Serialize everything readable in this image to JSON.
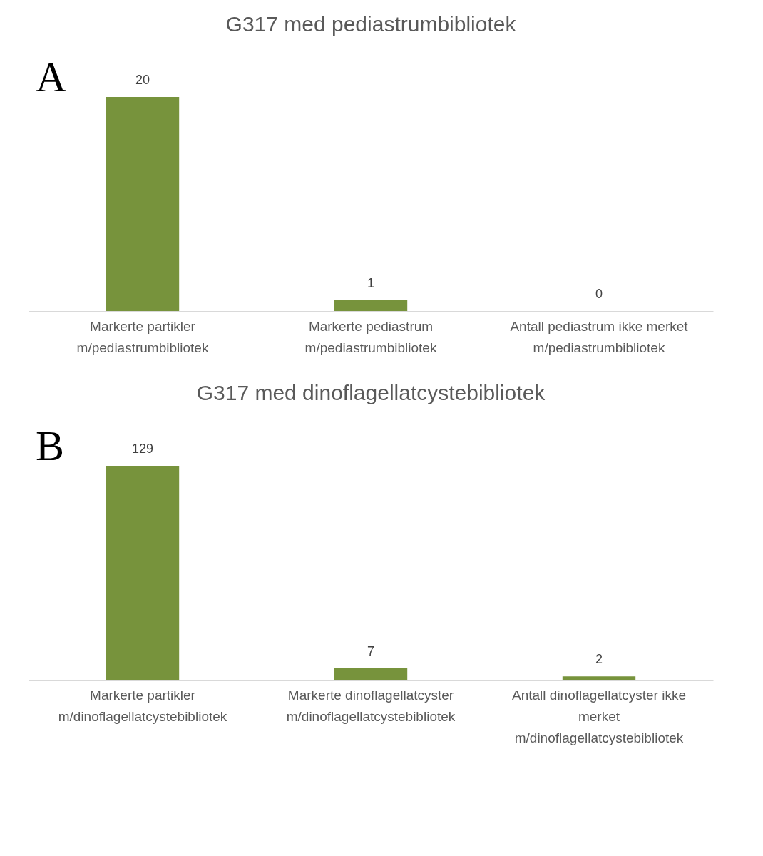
{
  "chart_data": [
    {
      "type": "bar",
      "title": "G317 med pediastrumbibliotek",
      "annotations": [
        "A"
      ],
      "categories": [
        "Markerte partikler\nm/pediastrumbibliotek",
        "Markerte pediastrum\nm/pediastrumbibliotek",
        "Antall pediastrum ikke merket\nm/pediastrumbibliotek"
      ],
      "values": [
        20,
        1,
        0
      ],
      "color": "#77933c",
      "data_labels": true
    },
    {
      "type": "bar",
      "title": "G317 med dinoflagellatcystebibliotek",
      "annotations": [
        "B"
      ],
      "categories": [
        "Markerte partikler\nm/dinoflagellatcystebibliotek",
        "Markerte dinoflagellatcyster\nm/dinoflagellatcystebibliotek",
        "Antall dinoflagellatcyster ikke\nmerket\nm/dinoflagellatcystebibliotek"
      ],
      "values": [
        129,
        7,
        2
      ],
      "color": "#77933c",
      "data_labels": true
    }
  ]
}
